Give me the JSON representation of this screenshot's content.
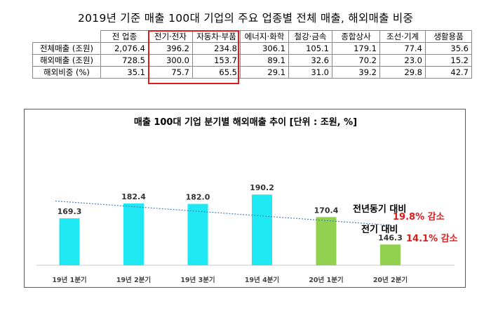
{
  "top_title": "2019년 기준 매출 100대 기업의 주요 업종별 전체 매출, 해외매출 비중",
  "table": {
    "headers": [
      "전 업종",
      "전기·전자",
      "자동차·부품",
      "에너지·화학",
      "철강·금속",
      "종합상사",
      "조선·기계",
      "생활용품"
    ],
    "rows": [
      {
        "label": "전체매출 (조원)",
        "values": [
          "2,076.4",
          "396.2",
          "234.8",
          "306.1",
          "105.1",
          "179.1",
          "77.4",
          "35.6"
        ]
      },
      {
        "label": "해외매출 (조원)",
        "values": [
          "728.5",
          "300.0",
          "153.7",
          "89.1",
          "32.6",
          "70.2",
          "23.0",
          "15.2"
        ]
      },
      {
        "label": "해외비중  (%)",
        "values": [
          "35.1",
          "75.7",
          "65.5",
          "29.1",
          "31.0",
          "39.2",
          "29.8",
          "42.7"
        ]
      }
    ]
  },
  "colors": {
    "cyan_bar": "#1fe8f2",
    "green_bar": "#92d050",
    "trend": "#4a7fc1",
    "highlight": "#e01b1b"
  },
  "chart_data": {
    "type": "bar",
    "title": "매출 100대 기업 분기별 해외매출 추이 [단위 : 조원, %]",
    "categories": [
      "19년 1분기",
      "19년 2분기",
      "19년 3분기",
      "19년 4분기",
      "20년 1분기",
      "20년 2분기"
    ],
    "values": [
      169.3,
      182.4,
      182.0,
      190.2,
      170.4,
      146.3
    ],
    "value_labels": [
      "169.3",
      "182.4",
      "182.0",
      "190.2",
      "170.4",
      "146.3"
    ],
    "bar_colors": [
      "cyan",
      "cyan",
      "cyan",
      "cyan",
      "green",
      "green"
    ],
    "trendline": "linear",
    "grid": false,
    "legend": "none"
  },
  "annotations": {
    "yoy_label": "전년동기 대비",
    "yoy_value": "19.8% 감소",
    "qoq_label": "전기 대비",
    "qoq_value": "14.1% 감소"
  }
}
